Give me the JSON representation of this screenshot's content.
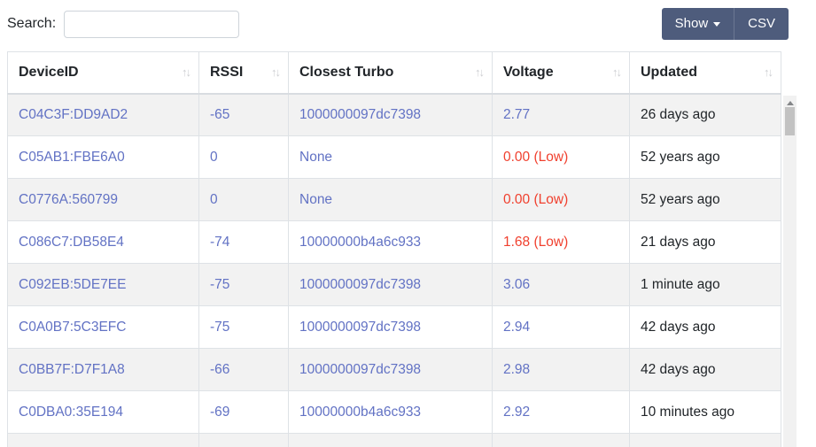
{
  "toolbar": {
    "search_label": "Search:",
    "search_value": "",
    "show_button": "Show",
    "csv_button": "CSV"
  },
  "table": {
    "sort_icons": "↑↓",
    "columns": [
      {
        "label": "DeviceID"
      },
      {
        "label": "RSSI"
      },
      {
        "label": "Closest Turbo"
      },
      {
        "label": "Voltage"
      },
      {
        "label": "Updated"
      }
    ],
    "rows": [
      {
        "device_id": "C04C3F:DD9AD2",
        "rssi": "-65",
        "closest_turbo": "1000000097dc7398",
        "voltage": "2.77",
        "voltage_low": false,
        "updated": "26 days ago"
      },
      {
        "device_id": "C05AB1:FBE6A0",
        "rssi": "0",
        "closest_turbo": "None",
        "voltage": "0.00 (Low)",
        "voltage_low": true,
        "updated": "52 years ago"
      },
      {
        "device_id": "C0776A:560799",
        "rssi": "0",
        "closest_turbo": "None",
        "voltage": "0.00 (Low)",
        "voltage_low": true,
        "updated": "52 years ago"
      },
      {
        "device_id": "C086C7:DB58E4",
        "rssi": "-74",
        "closest_turbo": "10000000b4a6c933",
        "voltage": "1.68 (Low)",
        "voltage_low": true,
        "updated": "21 days ago"
      },
      {
        "device_id": "C092EB:5DE7EE",
        "rssi": "-75",
        "closest_turbo": "1000000097dc7398",
        "voltage": "3.06",
        "voltage_low": false,
        "updated": "1 minute ago"
      },
      {
        "device_id": "C0A0B7:5C3EFC",
        "rssi": "-75",
        "closest_turbo": "1000000097dc7398",
        "voltage": "2.94",
        "voltage_low": false,
        "updated": "42 days ago"
      },
      {
        "device_id": "C0BB7F:D7F1A8",
        "rssi": "-66",
        "closest_turbo": "1000000097dc7398",
        "voltage": "2.98",
        "voltage_low": false,
        "updated": "42 days ago"
      },
      {
        "device_id": "C0DBA0:35E194",
        "rssi": "-69",
        "closest_turbo": "10000000b4a6c933",
        "voltage": "2.92",
        "voltage_low": false,
        "updated": "10 minutes ago"
      }
    ]
  },
  "colors": {
    "button_bg": "#4e5c7c",
    "link": "#6272c4",
    "low_voltage": "#f0402e",
    "stripe": "#f2f2f2",
    "border": "#dee2e6"
  }
}
